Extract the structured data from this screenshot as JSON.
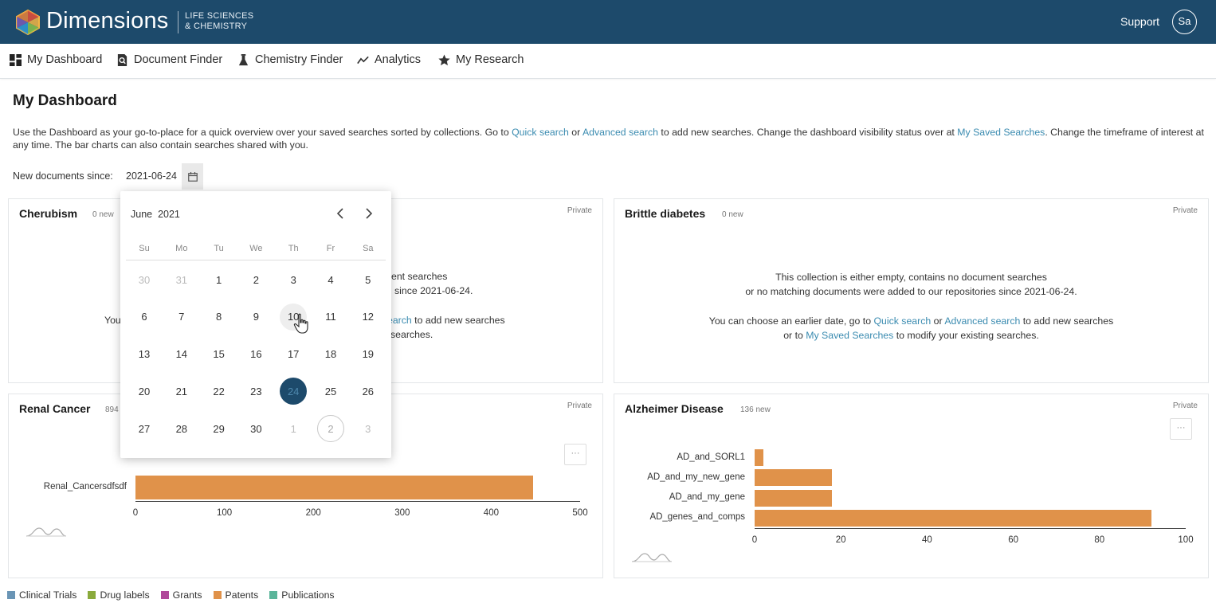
{
  "header": {
    "brand": "Dimensions",
    "brand_sub_line1": "LIFE SCIENCES",
    "brand_sub_line2": "& CHEMISTRY",
    "support": "Support",
    "avatar": "Sa"
  },
  "nav": {
    "items": [
      {
        "label": "My Dashboard",
        "icon": "dashboard-icon"
      },
      {
        "label": "Document Finder",
        "icon": "document-search-icon"
      },
      {
        "label": "Chemistry Finder",
        "icon": "flask-icon"
      },
      {
        "label": "Analytics",
        "icon": "analytics-icon"
      },
      {
        "label": "My Research",
        "icon": "star-icon"
      }
    ]
  },
  "page": {
    "title": "My Dashboard",
    "intro_1": "Use the Dashboard as your go-to-place for a quick overview over your saved searches sorted by collections. Go to ",
    "quick_search": "Quick search",
    "intro_or": " or ",
    "advanced_search": "Advanced search",
    "intro_2": " to add new searches. Change the dashboard visibility status over at ",
    "my_saved_searches": "My Saved Searches",
    "intro_3": ". Change the timeframe of interest at any time. The bar charts can also contain searches shared with you.",
    "since_label": "New documents since:",
    "since_value": "2021-06-24"
  },
  "cards": {
    "cherubism": {
      "title": "Cherubism",
      "count": "0 new",
      "private": "Private",
      "line1_visible": "ent searches",
      "line2_visible": "since 2021-06-24.",
      "line3_left": "You",
      "line3_link": "earch",
      "line3_right": " to add new searches",
      "line4_visible": "searches."
    },
    "brittle": {
      "title": "Brittle diabetes",
      "count": "0 new",
      "private": "Private",
      "line1": "This collection is either empty, contains no document searches",
      "line2": "or no matching documents were added to our repositories since 2021-06-24.",
      "line3_a": "You can choose an earlier date, go to ",
      "line3_quick": "Quick search",
      "line3_or": " or ",
      "line3_advanced": "Advanced search",
      "line3_b": " to add new searches",
      "line4_a": "or to ",
      "line4_link": "My Saved Searches",
      "line4_b": " to modify your existing searches."
    },
    "renal": {
      "title": "Renal Cancer",
      "count": "894",
      "private": "Private",
      "more": "···"
    },
    "alzheimer": {
      "title": "Alzheimer Disease",
      "count": "136 new",
      "private": "Private",
      "more": "···"
    }
  },
  "chart_data": [
    {
      "type": "bar",
      "orientation": "horizontal",
      "categories": [
        "Renal_Cancersdfsdf"
      ],
      "series": [
        {
          "values": [
            447
          ]
        }
      ],
      "xlim": [
        0,
        500
      ],
      "xticks": [
        0,
        100,
        200,
        300,
        400,
        500
      ],
      "color": "#e0924a"
    },
    {
      "type": "bar",
      "orientation": "horizontal",
      "categories": [
        "AD_and_SORL1",
        "AD_and_my_new_gene",
        "AD_and_my_gene",
        "AD_genes_and_comps"
      ],
      "series": [
        {
          "values": [
            2,
            18,
            18,
            92
          ]
        }
      ],
      "xlim": [
        0,
        100
      ],
      "xticks": [
        0,
        20,
        40,
        60,
        80,
        100
      ],
      "color": "#e0924a"
    }
  ],
  "legend": [
    {
      "label": "Clinical Trials",
      "color": "#6a95b5"
    },
    {
      "label": "Drug labels",
      "color": "#8aaa3c"
    },
    {
      "label": "Grants",
      "color": "#b0499a"
    },
    {
      "label": "Patents",
      "color": "#e0924a"
    },
    {
      "label": "Publications",
      "color": "#5bb59a"
    }
  ],
  "datepicker": {
    "month": "June",
    "year": "2021",
    "weekdays": [
      "Su",
      "Mo",
      "Tu",
      "We",
      "Th",
      "Fr",
      "Sa"
    ],
    "weeks": [
      [
        "30",
        "31",
        "1",
        "2",
        "3",
        "4",
        "5"
      ],
      [
        "6",
        "7",
        "8",
        "9",
        "10",
        "11",
        "12"
      ],
      [
        "13",
        "14",
        "15",
        "16",
        "17",
        "18",
        "19"
      ],
      [
        "20",
        "21",
        "22",
        "23",
        "24",
        "25",
        "26"
      ],
      [
        "27",
        "28",
        "29",
        "30",
        "1",
        "2",
        "3"
      ]
    ],
    "selected_day": "24",
    "hover_day": "10",
    "today_day": "2"
  }
}
